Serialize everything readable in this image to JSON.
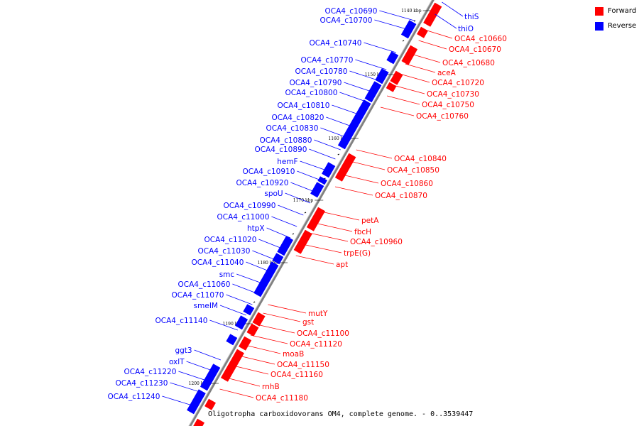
{
  "colors": {
    "forward": "#ff0000",
    "reverse": "#0000ff",
    "axis": "#808080",
    "tick": "#000000"
  },
  "legend": {
    "forward_label": "Forward",
    "reverse_label": "Reverse"
  },
  "caption": "Oligotropha carboxidovorans OM4, complete genome. - 0..3539447",
  "ticks": [
    "1140 kbp",
    "1150 kbp",
    "1160 kbp",
    "1170 kbp",
    "1180 kbp",
    "1190 kbp",
    "1200 kbp"
  ],
  "reverse_genes": [
    "OCA4_c10690",
    "OCA4_c10700",
    "OCA4_c10740",
    "OCA4_c10770",
    "OCA4_c10780",
    "OCA4_c10790",
    "OCA4_c10800",
    "OCA4_c10810",
    "OCA4_c10820",
    "OCA4_c10830",
    "OCA4_c10880",
    "OCA4_c10890",
    "hemF",
    "OCA4_c10910",
    "OCA4_c10920",
    "spoU",
    "OCA4_c10990",
    "OCA4_c11000",
    "htpX",
    "OCA4_c11020",
    "OCA4_c11030",
    "OCA4_c11040",
    "smc",
    "OCA4_c11060",
    "OCA4_c11070",
    "smeIM",
    "OCA4_c11140",
    "ggt3",
    "oxlT",
    "OCA4_c11220",
    "OCA4_c11230",
    "OCA4_c11240",
    "thiS",
    "thiO"
  ],
  "forward_genes": [
    "OCA4_c10660",
    "OCA4_c10670",
    "OCA4_c10680",
    "aceA",
    "OCA4_c10720",
    "OCA4_c10730",
    "OCA4_c10750",
    "OCA4_c10760",
    "OCA4_c10840",
    "OCA4_c10850",
    "OCA4_c10860",
    "OCA4_c10870",
    "petA",
    "fbcH",
    "OCA4_c10960",
    "trpE(G)",
    "apt",
    "mutY",
    "gst",
    "OCA4_c11100",
    "OCA4_c11120",
    "moaB",
    "OCA4_c11150",
    "OCA4_c11160",
    "rnhB",
    "OCA4_c11180"
  ]
}
